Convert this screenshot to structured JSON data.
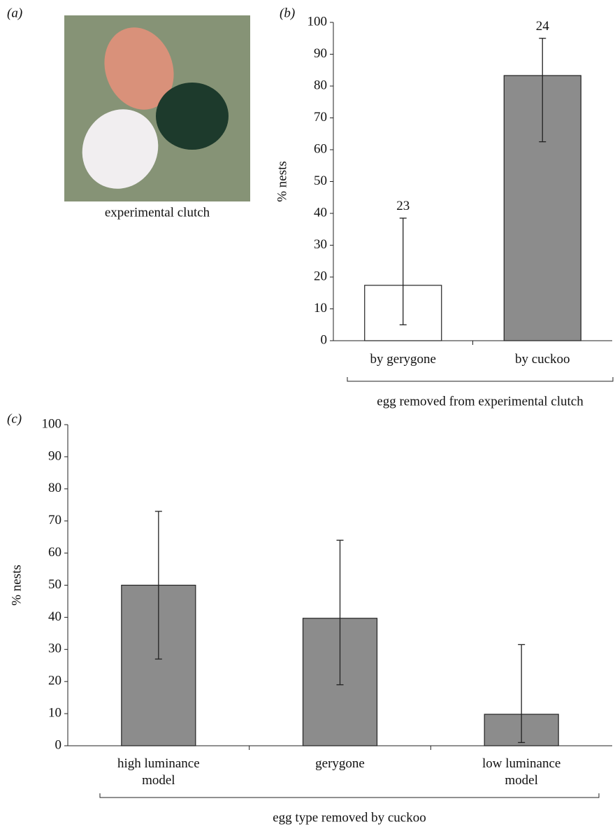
{
  "panel_a": {
    "label": "(a)",
    "caption": "experimental clutch"
  },
  "chart_data": [
    {
      "type": "bar",
      "label": "(b)",
      "ylabel": "% nests",
      "xlabel": "egg removed from experimental clutch",
      "categories": [
        "by gerygone",
        "by cuckoo"
      ],
      "values": [
        17.4,
        83.3
      ],
      "ci_low": [
        5,
        62.5
      ],
      "ci_high": [
        38.5,
        95
      ],
      "n": [
        23,
        24
      ],
      "colors": [
        "#ffffff",
        "#8c8c8c"
      ],
      "ylim": [
        0,
        100
      ],
      "yticks": [
        0,
        10,
        20,
        30,
        40,
        50,
        60,
        70,
        80,
        90,
        100
      ]
    },
    {
      "type": "bar",
      "label": "(c)",
      "ylabel": "% nests",
      "xlabel": "egg type removed by cuckoo",
      "categories": [
        "high luminance model",
        "gerygone",
        "low luminance model"
      ],
      "values": [
        50,
        39.7,
        9.8
      ],
      "ci_low": [
        27,
        19,
        1
      ],
      "ci_high": [
        73,
        64,
        31.5
      ],
      "colors": [
        "#8c8c8c",
        "#8c8c8c",
        "#8c8c8c"
      ],
      "ylim": [
        0,
        100
      ],
      "yticks": [
        0,
        10,
        20,
        30,
        40,
        50,
        60,
        70,
        80,
        90,
        100
      ]
    }
  ]
}
